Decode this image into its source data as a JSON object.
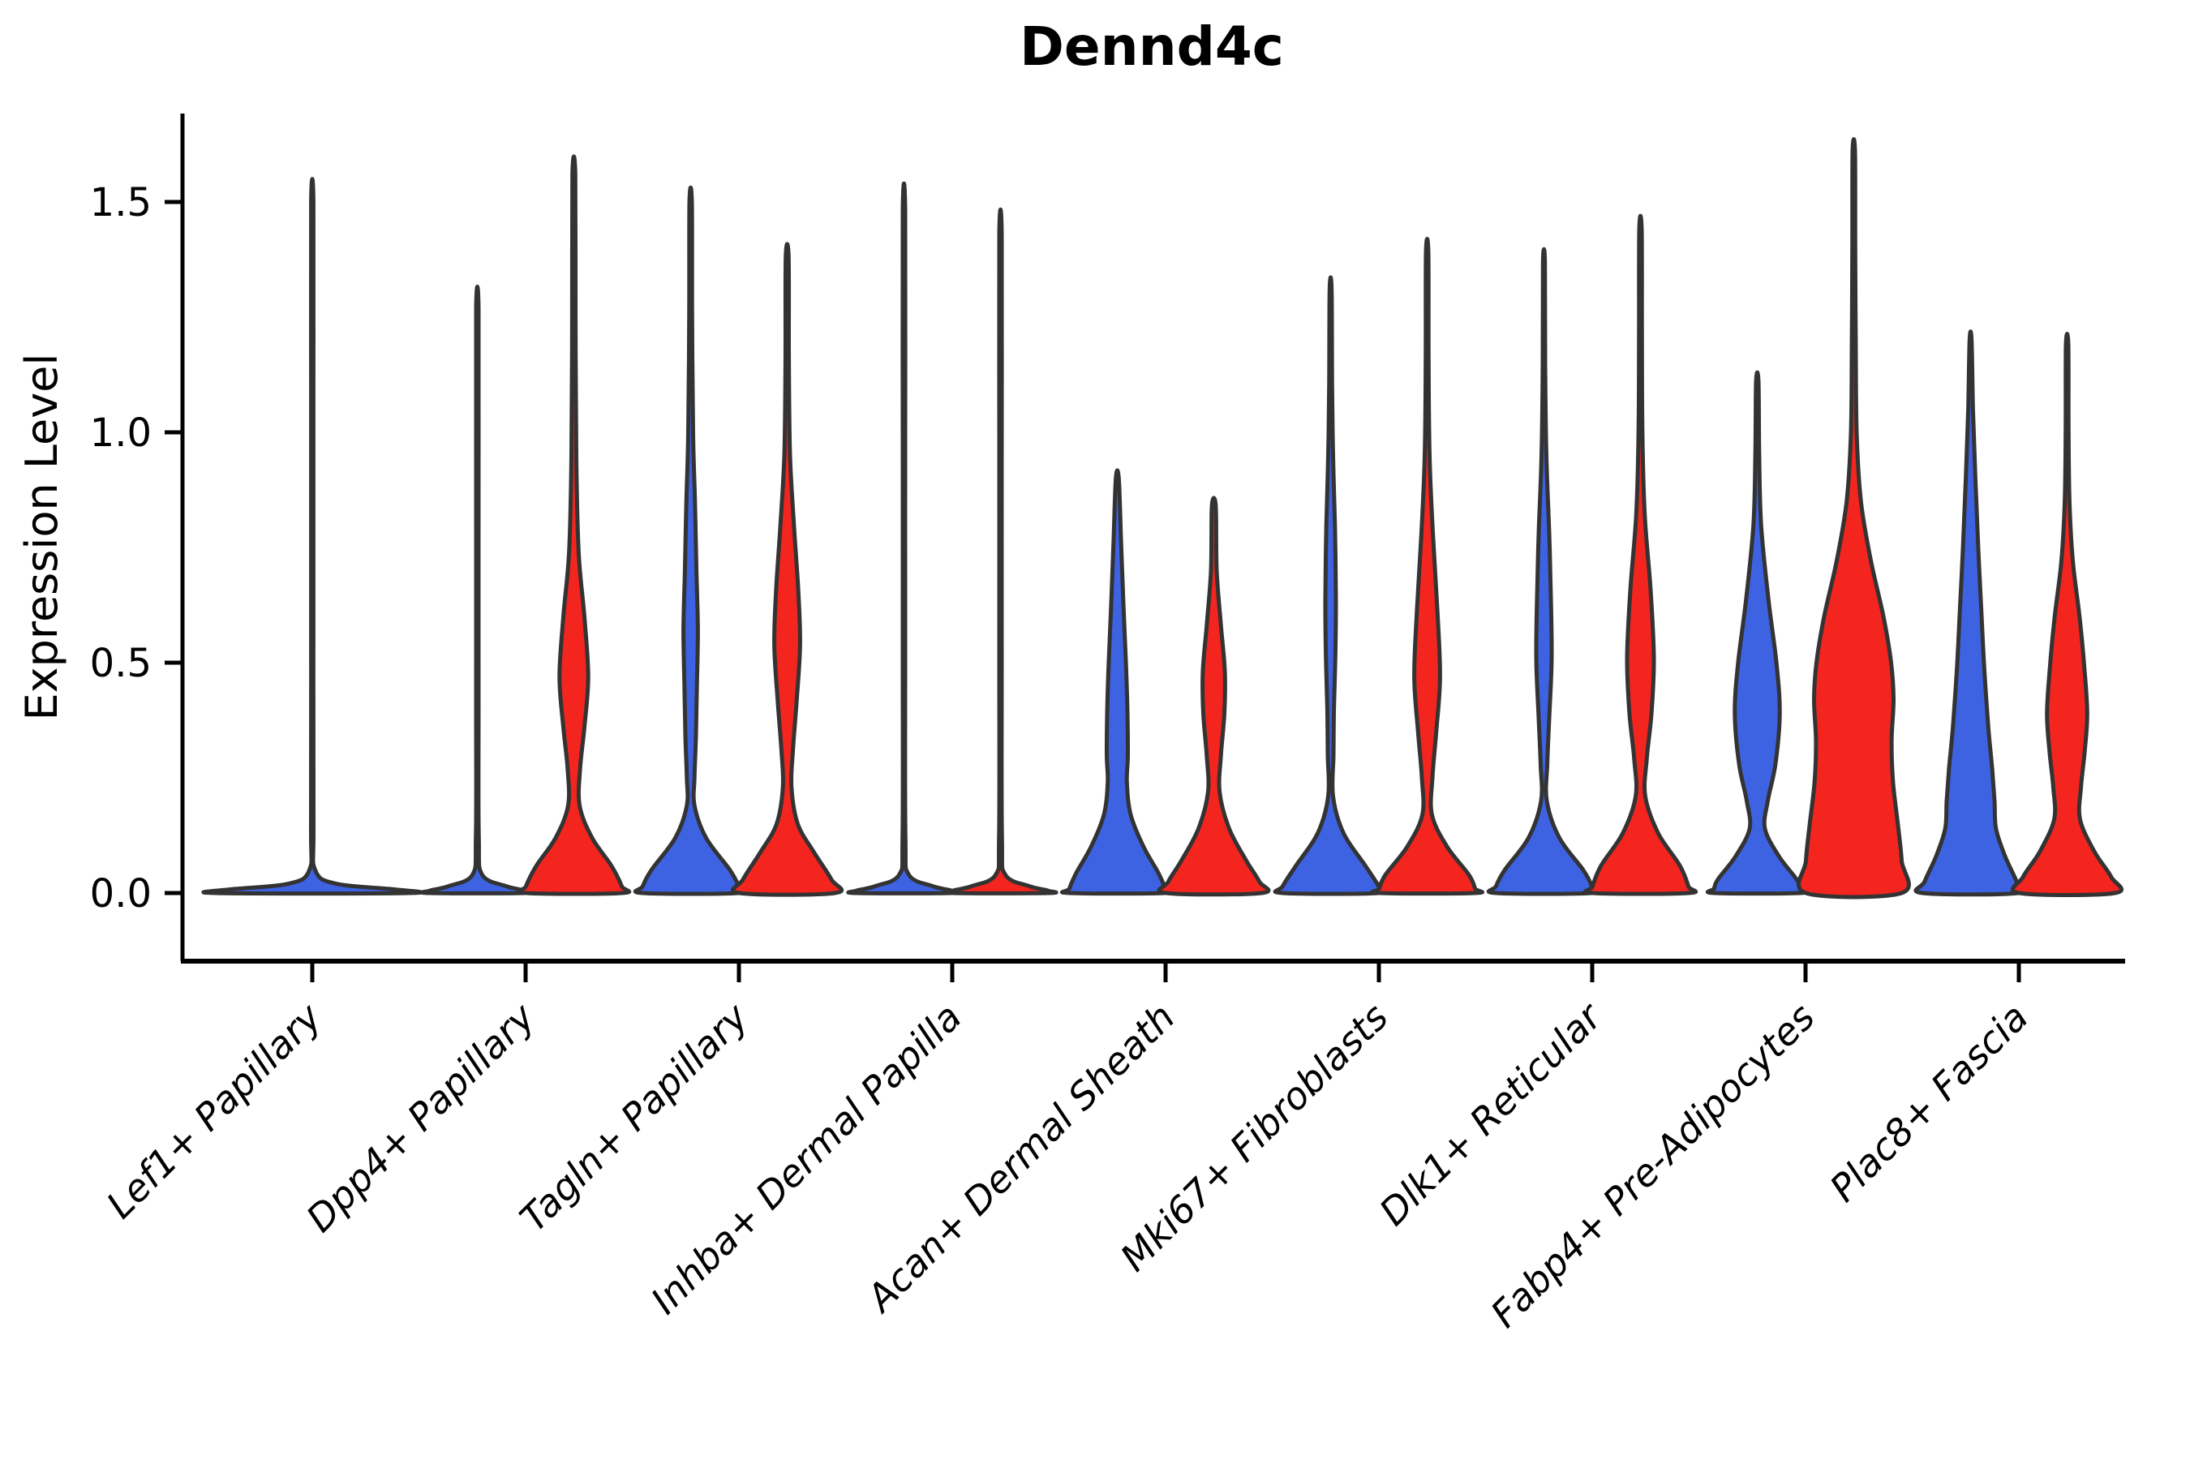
{
  "chart_data": {
    "type": "violin",
    "title": "Dennd4c",
    "xlabel": "",
    "ylabel": "Expression Level",
    "ytick_labels": [
      "0.0",
      "0.5",
      "1.0",
      "1.5"
    ],
    "ytick_values": [
      0.0,
      0.5,
      1.0,
      1.5
    ],
    "ylim": [
      -0.08,
      1.72
    ],
    "grid": false,
    "legend": "none",
    "palette": {
      "blue": "#3D63E3",
      "red": "#F4251F",
      "outline": "#333333"
    },
    "categories": [
      "Lef1+ Papillary",
      "Dpp4+ Papillary",
      "Tagln+ Papillary",
      "Inhba+ Dermal Papilla",
      "Acan+ Dermal Sheath",
      "Mki67+ Fibroblasts",
      "Dlk1+ Reticular",
      "Fabp4+ Pre-Adipocytes",
      "Plac8+ Fascia"
    ],
    "groups": [
      {
        "category": "Lef1+ Papillary",
        "violins": [
          {
            "slot": "full",
            "color_key": "blue",
            "max_expression": 1.5,
            "profile": [
              [
                1.5,
                0.012
              ],
              [
                1.1,
                0.012
              ],
              [
                0.6,
                0.012
              ],
              [
                0.15,
                0.013
              ],
              [
                0.05,
                0.03
              ],
              [
                0.02,
                0.25
              ],
              [
                0.008,
                0.85
              ],
              [
                0.0,
                1.0
              ]
            ]
          }
        ]
      },
      {
        "category": "Dpp4+ Papillary",
        "violins": [
          {
            "slot": "left",
            "color_key": "blue",
            "max_expression": 1.27,
            "profile": [
              [
                1.27,
                0.025
              ],
              [
                0.9,
                0.025
              ],
              [
                0.4,
                0.025
              ],
              [
                0.12,
                0.03
              ],
              [
                0.04,
                0.1
              ],
              [
                0.015,
                0.6
              ],
              [
                0.005,
                1.0
              ],
              [
                0.0,
                1.0
              ]
            ]
          },
          {
            "slot": "right",
            "color_key": "red",
            "max_expression": 1.56,
            "profile": [
              [
                1.56,
                0.03
              ],
              [
                1.25,
                0.035
              ],
              [
                0.95,
                0.05
              ],
              [
                0.74,
                0.1
              ],
              [
                0.6,
                0.22
              ],
              [
                0.47,
                0.3
              ],
              [
                0.36,
                0.22
              ],
              [
                0.27,
                0.13
              ],
              [
                0.19,
                0.12
              ],
              [
                0.12,
                0.38
              ],
              [
                0.06,
                0.78
              ],
              [
                0.015,
                1.0
              ],
              [
                0.0,
                1.0
              ]
            ]
          }
        ]
      },
      {
        "category": "Tagln+ Papillary",
        "violins": [
          {
            "slot": "left",
            "color_key": "blue",
            "max_expression": 1.5,
            "profile": [
              [
                1.5,
                0.025
              ],
              [
                1.25,
                0.03
              ],
              [
                1.0,
                0.05
              ],
              [
                0.85,
                0.09
              ],
              [
                0.7,
                0.12
              ],
              [
                0.57,
                0.15
              ],
              [
                0.45,
                0.13
              ],
              [
                0.34,
                0.11
              ],
              [
                0.25,
                0.08
              ],
              [
                0.19,
                0.08
              ],
              [
                0.12,
                0.32
              ],
              [
                0.05,
                0.82
              ],
              [
                0.015,
                1.0
              ],
              [
                0.0,
                1.0
              ]
            ]
          },
          {
            "slot": "right",
            "color_key": "red",
            "max_expression": 1.38,
            "profile": [
              [
                1.38,
                0.03
              ],
              [
                1.15,
                0.035
              ],
              [
                0.95,
                0.06
              ],
              [
                0.8,
                0.14
              ],
              [
                0.66,
                0.23
              ],
              [
                0.54,
                0.27
              ],
              [
                0.42,
                0.2
              ],
              [
                0.31,
                0.12
              ],
              [
                0.23,
                0.09
              ],
              [
                0.15,
                0.22
              ],
              [
                0.09,
                0.55
              ],
              [
                0.03,
                0.92
              ],
              [
                0.0,
                1.0
              ]
            ]
          }
        ]
      },
      {
        "category": "Inhba+ Dermal Papilla",
        "violins": [
          {
            "slot": "left",
            "color_key": "blue",
            "max_expression": 1.48,
            "profile": [
              [
                1.48,
                0.025
              ],
              [
                1.0,
                0.025
              ],
              [
                0.5,
                0.025
              ],
              [
                0.12,
                0.03
              ],
              [
                0.04,
                0.1
              ],
              [
                0.015,
                0.6
              ],
              [
                0.005,
                1.0
              ],
              [
                0.0,
                1.0
              ]
            ]
          },
          {
            "slot": "right",
            "color_key": "red",
            "max_expression": 1.43,
            "profile": [
              [
                1.43,
                0.025
              ],
              [
                1.0,
                0.025
              ],
              [
                0.5,
                0.025
              ],
              [
                0.12,
                0.03
              ],
              [
                0.04,
                0.1
              ],
              [
                0.015,
                0.6
              ],
              [
                0.005,
                1.0
              ],
              [
                0.0,
                1.0
              ]
            ]
          }
        ]
      },
      {
        "category": "Acan+ Dermal Sheath",
        "violins": [
          {
            "slot": "left",
            "color_key": "blue",
            "max_expression": 0.9,
            "profile": [
              [
                0.9,
                0.03
              ],
              [
                0.76,
                0.08
              ],
              [
                0.62,
                0.13
              ],
              [
                0.5,
                0.18
              ],
              [
                0.4,
                0.21
              ],
              [
                0.3,
                0.22
              ],
              [
                0.24,
                0.2
              ],
              [
                0.17,
                0.28
              ],
              [
                0.1,
                0.55
              ],
              [
                0.045,
                0.85
              ],
              [
                0.01,
                1.0
              ],
              [
                0.0,
                1.0
              ]
            ]
          },
          {
            "slot": "right",
            "color_key": "red",
            "max_expression": 0.84,
            "profile": [
              [
                0.84,
                0.04
              ],
              [
                0.7,
                0.06
              ],
              [
                0.58,
                0.15
              ],
              [
                0.48,
                0.23
              ],
              [
                0.39,
                0.22
              ],
              [
                0.3,
                0.15
              ],
              [
                0.22,
                0.12
              ],
              [
                0.14,
                0.32
              ],
              [
                0.07,
                0.68
              ],
              [
                0.025,
                0.95
              ],
              [
                0.0,
                1.0
              ]
            ]
          }
        ]
      },
      {
        "category": "Mki67+ Fibroblasts",
        "violins": [
          {
            "slot": "left",
            "color_key": "blue",
            "max_expression": 1.31,
            "profile": [
              [
                1.31,
                0.02
              ],
              [
                1.1,
                0.03
              ],
              [
                0.95,
                0.05
              ],
              [
                0.8,
                0.09
              ],
              [
                0.64,
                0.11
              ],
              [
                0.52,
                0.1
              ],
              [
                0.4,
                0.07
              ],
              [
                0.3,
                0.06
              ],
              [
                0.21,
                0.05
              ],
              [
                0.13,
                0.27
              ],
              [
                0.06,
                0.72
              ],
              [
                0.015,
                1.0
              ],
              [
                0.0,
                1.0
              ]
            ]
          },
          {
            "slot": "right",
            "color_key": "red",
            "max_expression": 1.39,
            "profile": [
              [
                1.39,
                0.025
              ],
              [
                1.15,
                0.03
              ],
              [
                0.95,
                0.05
              ],
              [
                0.78,
                0.12
              ],
              [
                0.62,
                0.21
              ],
              [
                0.47,
                0.27
              ],
              [
                0.35,
                0.19
              ],
              [
                0.25,
                0.11
              ],
              [
                0.17,
                0.1
              ],
              [
                0.1,
                0.42
              ],
              [
                0.04,
                0.87
              ],
              [
                0.01,
                1.0
              ],
              [
                0.0,
                1.0
              ]
            ]
          }
        ]
      },
      {
        "category": "Dlk1+ Reticular",
        "violins": [
          {
            "slot": "left",
            "color_key": "blue",
            "max_expression": 1.37,
            "profile": [
              [
                1.37,
                0.02
              ],
              [
                1.15,
                0.025
              ],
              [
                0.95,
                0.05
              ],
              [
                0.78,
                0.11
              ],
              [
                0.62,
                0.15
              ],
              [
                0.5,
                0.16
              ],
              [
                0.38,
                0.11
              ],
              [
                0.28,
                0.07
              ],
              [
                0.2,
                0.06
              ],
              [
                0.12,
                0.32
              ],
              [
                0.05,
                0.82
              ],
              [
                0.015,
                1.0
              ],
              [
                0.0,
                1.0
              ]
            ]
          },
          {
            "slot": "right",
            "color_key": "red",
            "max_expression": 1.44,
            "profile": [
              [
                1.44,
                0.025
              ],
              [
                1.2,
                0.03
              ],
              [
                1.0,
                0.04
              ],
              [
                0.82,
                0.09
              ],
              [
                0.66,
                0.21
              ],
              [
                0.51,
                0.28
              ],
              [
                0.39,
                0.23
              ],
              [
                0.29,
                0.13
              ],
              [
                0.21,
                0.1
              ],
              [
                0.13,
                0.37
              ],
              [
                0.06,
                0.82
              ],
              [
                0.015,
                1.0
              ],
              [
                0.0,
                1.0
              ]
            ]
          }
        ]
      },
      {
        "category": "Fabp4+ Pre-Adipocytes",
        "violins": [
          {
            "slot": "left",
            "color_key": "blue",
            "max_expression": 1.11,
            "profile": [
              [
                1.11,
                0.025
              ],
              [
                0.95,
                0.04
              ],
              [
                0.8,
                0.08
              ],
              [
                0.64,
                0.23
              ],
              [
                0.5,
                0.4
              ],
              [
                0.39,
                0.47
              ],
              [
                0.28,
                0.38
              ],
              [
                0.2,
                0.22
              ],
              [
                0.14,
                0.16
              ],
              [
                0.08,
                0.45
              ],
              [
                0.03,
                0.82
              ],
              [
                0.01,
                0.9
              ],
              [
                0.0,
                0.9
              ]
            ]
          },
          {
            "slot": "right",
            "color_key": "red",
            "max_expression": 1.61,
            "profile": [
              [
                1.61,
                0.025
              ],
              [
                1.4,
                0.03
              ],
              [
                1.2,
                0.04
              ],
              [
                1.0,
                0.06
              ],
              [
                0.85,
                0.15
              ],
              [
                0.72,
                0.36
              ],
              [
                0.6,
                0.62
              ],
              [
                0.5,
                0.78
              ],
              [
                0.42,
                0.83
              ],
              [
                0.33,
                0.79
              ],
              [
                0.24,
                0.82
              ],
              [
                0.15,
                0.92
              ],
              [
                0.07,
                1.0
              ],
              [
                0.0,
                1.0
              ]
            ]
          }
        ]
      },
      {
        "category": "Plac8+ Fascia",
        "violins": [
          {
            "slot": "left",
            "color_key": "blue",
            "max_expression": 1.2,
            "profile": [
              [
                1.2,
                0.02
              ],
              [
                1.05,
                0.05
              ],
              [
                0.9,
                0.1
              ],
              [
                0.75,
                0.16
              ],
              [
                0.6,
                0.23
              ],
              [
                0.48,
                0.29
              ],
              [
                0.36,
                0.37
              ],
              [
                0.27,
                0.45
              ],
              [
                0.2,
                0.5
              ],
              [
                0.14,
                0.53
              ],
              [
                0.08,
                0.72
              ],
              [
                0.025,
                0.96
              ],
              [
                0.0,
                1.0
              ]
            ]
          },
          {
            "slot": "right",
            "color_key": "red",
            "max_expression": 1.19,
            "profile": [
              [
                1.19,
                0.025
              ],
              [
                1.0,
                0.03
              ],
              [
                0.85,
                0.05
              ],
              [
                0.72,
                0.12
              ],
              [
                0.6,
                0.26
              ],
              [
                0.49,
                0.36
              ],
              [
                0.39,
                0.42
              ],
              [
                0.31,
                0.37
              ],
              [
                0.23,
                0.29
              ],
              [
                0.16,
                0.27
              ],
              [
                0.09,
                0.57
              ],
              [
                0.035,
                0.92
              ],
              [
                0.0,
                1.0
              ]
            ]
          }
        ]
      }
    ]
  }
}
